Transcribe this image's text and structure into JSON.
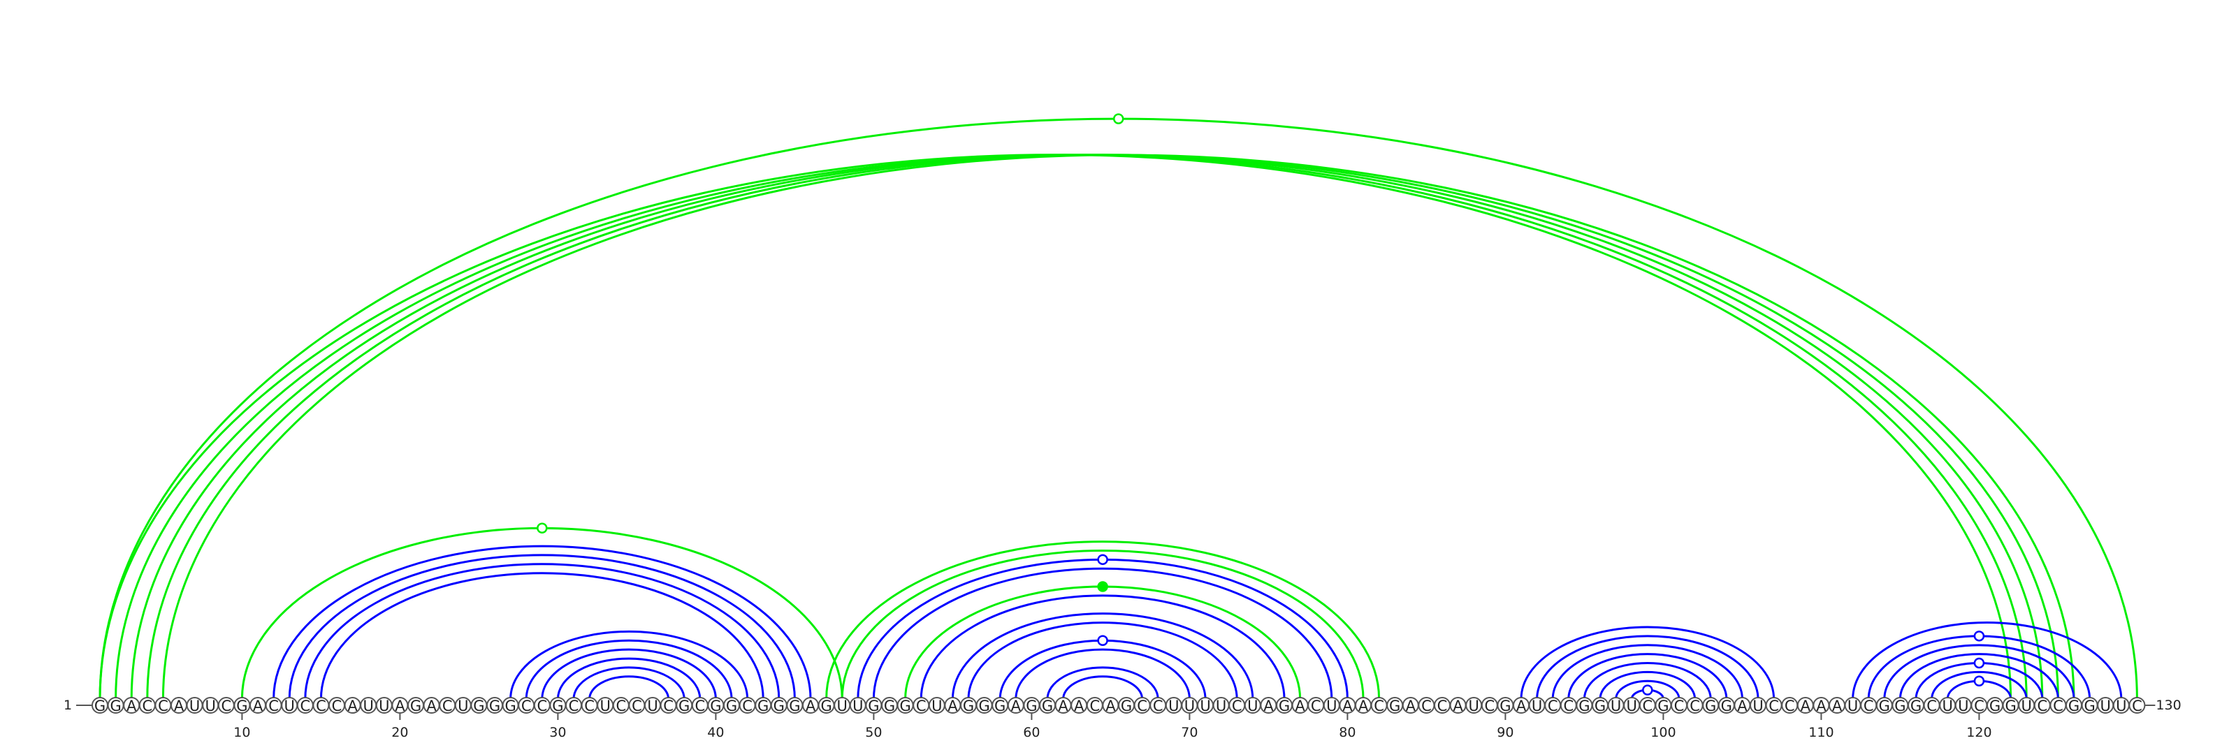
{
  "sequence": "GGACCAUUCGACUCCCAUUAGACUGGGCCGCCUCCUCGCGGCGGGAGUUGGGCUAGGGAGGAACAGCCUUUUCUAGACUAACGACCAUCGAUCCGGUUCGCCGGAUCCAAAUCGGGCUUCGGUCCGGUUC",
  "start_label": "1",
  "end_label": "130",
  "ticks": [
    10,
    20,
    30,
    40,
    50,
    60,
    70,
    80,
    90,
    100,
    110,
    120
  ],
  "colors": {
    "structure_a": "#0000ff",
    "structure_b": "#00ee00"
  },
  "arcs": [
    {
      "from": 1,
      "to": 122,
      "color": "#00ee00",
      "marker": "none"
    },
    {
      "from": 2,
      "to": 123,
      "color": "#00ee00",
      "marker": "none"
    },
    {
      "from": 3,
      "to": 124,
      "color": "#00ee00",
      "marker": "none"
    },
    {
      "from": 4,
      "to": 125,
      "color": "#00ee00",
      "marker": "none"
    },
    {
      "from": 5,
      "to": 126,
      "color": "#00ee00",
      "marker": "none"
    },
    {
      "from": 1,
      "to": 130,
      "color": "#00ee00",
      "marker": "open"
    },
    {
      "from": 10,
      "to": 48,
      "color": "#00ee00",
      "marker": "open"
    },
    {
      "from": 12,
      "to": 46,
      "color": "#0000ff",
      "marker": "none"
    },
    {
      "from": 13,
      "to": 45,
      "color": "#0000ff",
      "marker": "none"
    },
    {
      "from": 14,
      "to": 44,
      "color": "#0000ff",
      "marker": "none"
    },
    {
      "from": 15,
      "to": 43,
      "color": "#0000ff",
      "marker": "none"
    },
    {
      "from": 27,
      "to": 42,
      "color": "#0000ff",
      "marker": "none"
    },
    {
      "from": 28,
      "to": 41,
      "color": "#0000ff",
      "marker": "none"
    },
    {
      "from": 29,
      "to": 40,
      "color": "#0000ff",
      "marker": "none"
    },
    {
      "from": 30,
      "to": 39,
      "color": "#0000ff",
      "marker": "none"
    },
    {
      "from": 31,
      "to": 38,
      "color": "#0000ff",
      "marker": "none"
    },
    {
      "from": 32,
      "to": 37,
      "color": "#0000ff",
      "marker": "none"
    },
    {
      "from": 47,
      "to": 82,
      "color": "#00ee00",
      "marker": "none"
    },
    {
      "from": 48,
      "to": 81,
      "color": "#00ee00",
      "marker": "none"
    },
    {
      "from": 49,
      "to": 80,
      "color": "#0000ff",
      "marker": "open"
    },
    {
      "from": 50,
      "to": 79,
      "color": "#0000ff",
      "marker": "none"
    },
    {
      "from": 52,
      "to": 77,
      "color": "#00ee00",
      "marker": "filled"
    },
    {
      "from": 53,
      "to": 76,
      "color": "#0000ff",
      "marker": "none"
    },
    {
      "from": 55,
      "to": 74,
      "color": "#0000ff",
      "marker": "none"
    },
    {
      "from": 56,
      "to": 73,
      "color": "#0000ff",
      "marker": "none"
    },
    {
      "from": 58,
      "to": 71,
      "color": "#0000ff",
      "marker": "open"
    },
    {
      "from": 59,
      "to": 70,
      "color": "#0000ff",
      "marker": "none"
    },
    {
      "from": 61,
      "to": 68,
      "color": "#0000ff",
      "marker": "none"
    },
    {
      "from": 62,
      "to": 67,
      "color": "#0000ff",
      "marker": "none"
    },
    {
      "from": 91,
      "to": 107,
      "color": "#0000ff",
      "marker": "none"
    },
    {
      "from": 92,
      "to": 106,
      "color": "#0000ff",
      "marker": "none"
    },
    {
      "from": 93,
      "to": 105,
      "color": "#0000ff",
      "marker": "none"
    },
    {
      "from": 94,
      "to": 104,
      "color": "#0000ff",
      "marker": "none"
    },
    {
      "from": 95,
      "to": 103,
      "color": "#0000ff",
      "marker": "none"
    },
    {
      "from": 96,
      "to": 102,
      "color": "#0000ff",
      "marker": "none"
    },
    {
      "from": 97,
      "to": 101,
      "color": "#0000ff",
      "marker": "none"
    },
    {
      "from": 98,
      "to": 100,
      "color": "#0000ff",
      "marker": "open"
    },
    {
      "from": 112,
      "to": 129,
      "color": "#0000ff",
      "marker": "none"
    },
    {
      "from": 113,
      "to": 127,
      "color": "#0000ff",
      "marker": "open"
    },
    {
      "from": 114,
      "to": 126,
      "color": "#0000ff",
      "marker": "none"
    },
    {
      "from": 115,
      "to": 125,
      "color": "#0000ff",
      "marker": "none"
    },
    {
      "from": 116,
      "to": 124,
      "color": "#0000ff",
      "marker": "open"
    },
    {
      "from": 117,
      "to": 123,
      "color": "#0000ff",
      "marker": "none"
    },
    {
      "from": 118,
      "to": 122,
      "color": "#0000ff",
      "marker": "open"
    }
  ]
}
